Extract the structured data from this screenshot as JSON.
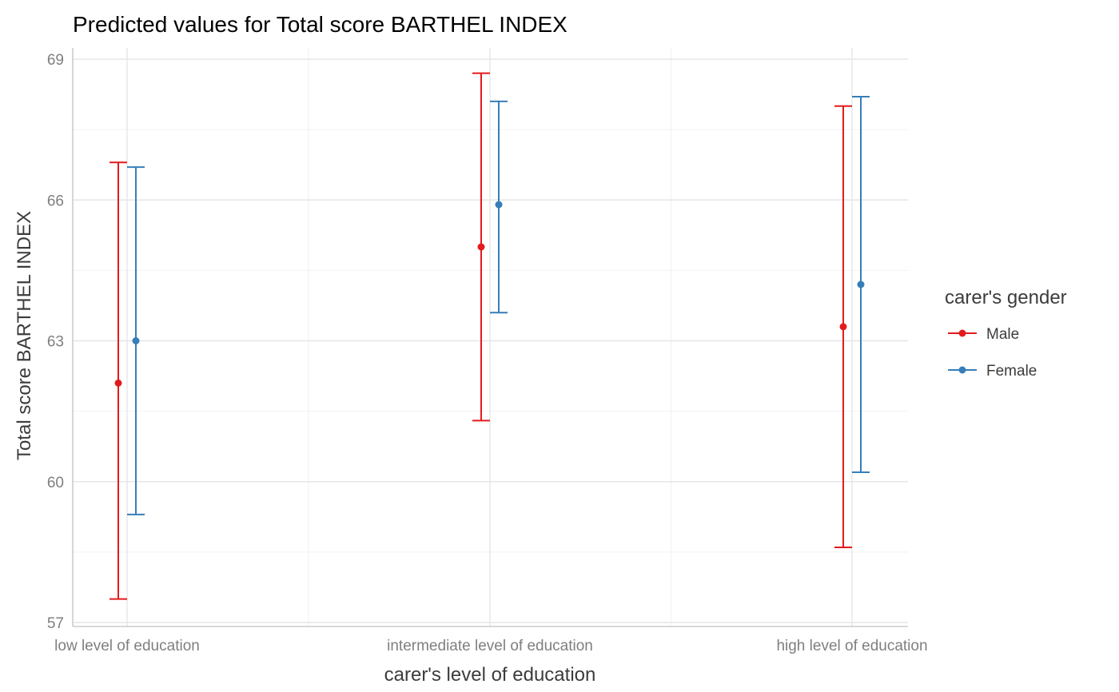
{
  "chart_data": {
    "type": "scatter",
    "title": "Predicted values for Total score BARTHEL INDEX",
    "xlabel": "carer's level of education",
    "ylabel": "Total score BARTHEL INDEX",
    "categories": [
      "low level of education",
      "intermediate level of education",
      "high level of education"
    ],
    "ylim": [
      57,
      69
    ],
    "yticks": [
      57,
      60,
      63,
      66,
      69
    ],
    "grid": true,
    "legend": {
      "title": "carer's gender",
      "position": "right"
    },
    "series": [
      {
        "name": "Male",
        "color": "#e41a1c",
        "values": [
          62.1,
          65.0,
          63.3
        ],
        "lower": [
          57.5,
          61.3,
          58.6
        ],
        "upper": [
          66.8,
          68.7,
          68.0
        ]
      },
      {
        "name": "Female",
        "color": "#377eb8",
        "values": [
          63.0,
          65.9,
          64.2
        ],
        "lower": [
          59.3,
          63.6,
          60.2
        ],
        "upper": [
          66.7,
          68.1,
          68.2
        ]
      }
    ]
  }
}
